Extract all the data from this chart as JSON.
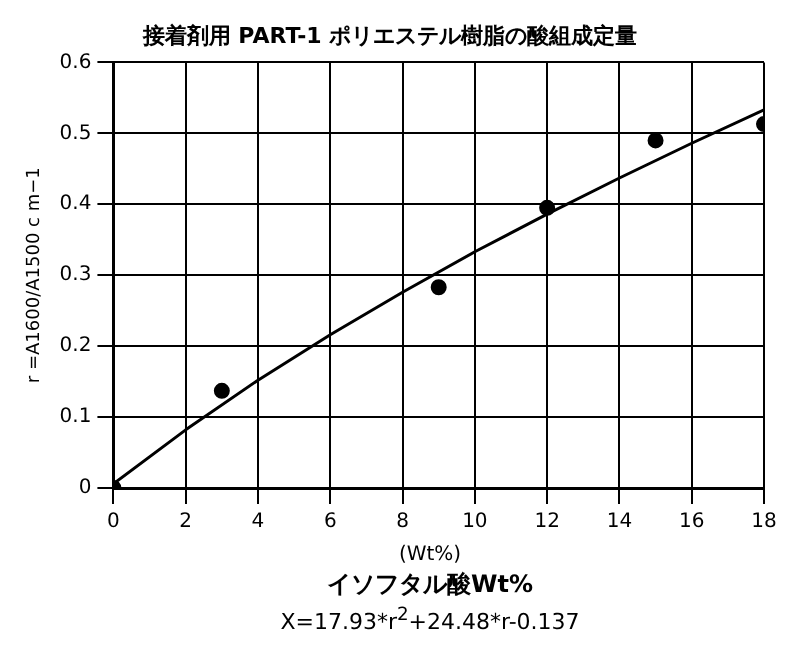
{
  "chart_data": {
    "type": "scatter",
    "title": "接着剤用 PART-1 ポリエステル樹脂の酸組成定量",
    "xlabel": "イソフタル酸Wt%",
    "ylabel": "r =A1600/A1500 c m−1",
    "annotations": [
      "(Wt%)",
      "X=17.93*r$^{2}$+24.48*r-0.137"
    ],
    "series": [
      {
        "color": "#000000",
        "marker": "circle",
        "x": [
          0,
          3,
          9,
          12,
          15,
          18
        ],
        "values": [
          0,
          0.137,
          0.283,
          0.395,
          0.49,
          0.513
        ]
      },
      {
        "type": "line",
        "color": "#000000",
        "marker": "none",
        "line_style": "solid",
        "x": [
          0,
          2,
          4,
          6,
          8,
          10,
          12,
          14,
          16,
          18
        ],
        "values": [
          0.006,
          0.082,
          0.152,
          0.216,
          0.276,
          0.333,
          0.386,
          0.437,
          0.486,
          0.533
        ]
      }
    ],
    "xlim": [
      0,
      18
    ],
    "xticks": [
      0,
      2,
      4,
      6,
      8,
      10,
      12,
      14,
      16,
      18
    ],
    "ylim": [
      0,
      0.6
    ],
    "yticks": [
      0,
      0.1,
      0.2,
      0.3,
      0.4,
      0.5,
      0.6
    ],
    "grid": true,
    "legend": false
  }
}
